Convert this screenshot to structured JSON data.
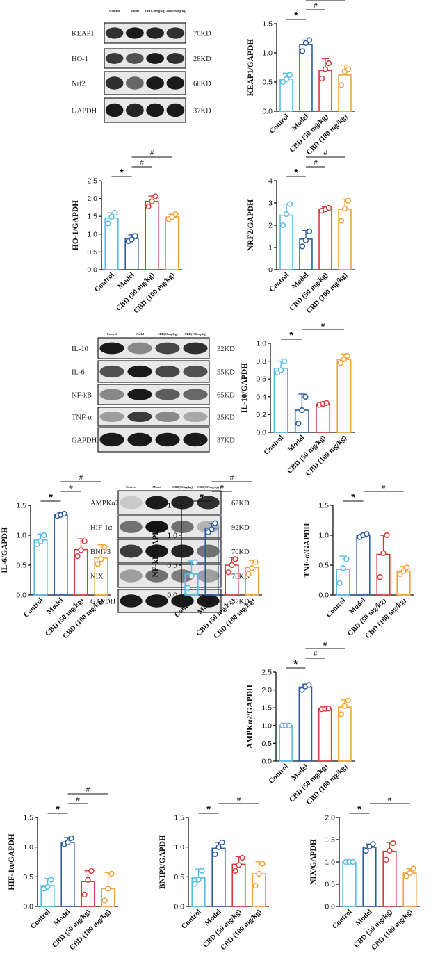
{
  "colors": {
    "Control": "#55bde6",
    "Model": "#2b5c9e",
    "CBD (50 mg/kg)": "#d93a3a",
    "CBD (100 mg/kg)": "#f0a33a"
  },
  "categories": [
    "Control",
    "Model",
    "CBD (50 mg/kg)",
    "CBD (100 mg/kg)"
  ],
  "blots": [
    {
      "lane_labels": [
        "Control",
        "Model",
        "CBD(50mg/kg)",
        "CBD(100mg/kg)"
      ],
      "rows": [
        {
          "protein": "KEAP1",
          "size": "70KD",
          "intensity": [
            0.85,
            0.95,
            0.9,
            0.85
          ]
        },
        {
          "protein": "HO-1",
          "size": "28KD",
          "intensity": [
            0.8,
            0.7,
            0.95,
            0.85
          ]
        },
        {
          "protein": "Nrf2",
          "size": "68KD",
          "intensity": [
            0.85,
            0.6,
            0.95,
            0.95
          ]
        },
        {
          "protein": "GAPDH",
          "size": "37KD",
          "intensity": [
            0.95,
            0.9,
            0.95,
            0.95
          ]
        }
      ]
    },
    {
      "lane_labels": [
        "Control",
        "Model",
        "CBD(50mg/kg)",
        "CBD(100mg/kg)"
      ],
      "rows": [
        {
          "protein": "IL-10",
          "size": "32KD",
          "intensity": [
            0.95,
            0.45,
            0.75,
            0.85
          ]
        },
        {
          "protein": "IL-6",
          "size": "55KD",
          "intensity": [
            0.7,
            0.95,
            0.75,
            0.7
          ]
        },
        {
          "protein": "NF-kB",
          "size": "65KD",
          "intensity": [
            0.45,
            0.95,
            0.65,
            0.6
          ]
        },
        {
          "protein": "TNF-α",
          "size": "25KD",
          "intensity": [
            0.35,
            0.8,
            0.45,
            0.3
          ]
        },
        {
          "protein": "GAPDH",
          "size": "37KD",
          "intensity": [
            0.95,
            0.95,
            0.95,
            0.95
          ]
        }
      ]
    },
    {
      "lane_labels": [
        "Control",
        "Model",
        "CBD(50mg/kg)",
        "CBD(100mg/kg)"
      ],
      "rows": [
        {
          "protein": "AMPKα2",
          "size": "62KD",
          "intensity": [
            0.15,
            0.95,
            0.9,
            0.85
          ]
        },
        {
          "protein": "HIF-1α",
          "size": "92KD",
          "intensity": [
            0.55,
            0.98,
            0.55,
            0.25
          ]
        },
        {
          "protein": "BNIP3",
          "size": "70KD",
          "intensity": [
            0.8,
            0.95,
            0.9,
            0.55
          ]
        },
        {
          "protein": "NIX",
          "size": "70KD",
          "intensity": [
            0.35,
            0.55,
            0.5,
            0.35
          ]
        },
        {
          "protein": "GAPDH",
          "size": "37KD",
          "intensity": [
            0.95,
            0.95,
            0.95,
            0.95
          ]
        }
      ]
    }
  ],
  "chart_data": [
    {
      "type": "bar",
      "ylabel": "KEAP1/GAPDH",
      "ylim": [
        0,
        1.5
      ],
      "yticks": [
        "0.0",
        "0.5",
        "1.0",
        "1.5"
      ],
      "values": [
        0.55,
        1.14,
        0.7,
        0.62
      ],
      "errors": [
        0.1,
        0.08,
        0.2,
        0.17
      ],
      "points": [
        [
          0.5,
          0.55,
          0.62
        ],
        [
          1.03,
          1.17,
          1.22
        ],
        [
          0.56,
          0.72,
          0.82
        ],
        [
          0.45,
          0.68,
          0.72
        ]
      ],
      "sig": [
        {
          "from": 0,
          "to": 1,
          "label": "*"
        },
        {
          "from": 1,
          "to": 2,
          "label": "#"
        },
        {
          "from": 1,
          "to": 3,
          "label": "#"
        }
      ]
    },
    {
      "type": "bar",
      "ylabel": "HO-1/GAPDH",
      "ylim": [
        0,
        2.5
      ],
      "yticks": [
        "0.0",
        "0.5",
        "1.0",
        "1.5",
        "2.0",
        "2.5"
      ],
      "values": [
        1.45,
        0.88,
        1.92,
        1.48
      ],
      "errors": [
        0.15,
        0.1,
        0.15,
        0.08
      ],
      "points": [
        [
          1.3,
          1.48,
          1.6
        ],
        [
          0.8,
          0.85,
          0.95
        ],
        [
          1.78,
          1.92,
          2.06
        ],
        [
          1.42,
          1.48,
          1.56
        ]
      ],
      "sig": [
        {
          "from": 0,
          "to": 1,
          "label": "*"
        },
        {
          "from": 1,
          "to": 2,
          "label": "#"
        },
        {
          "from": 1,
          "to": 3,
          "label": "#"
        }
      ]
    },
    {
      "type": "bar",
      "ylabel": "NRF2/GAPDH",
      "ylim": [
        0,
        4
      ],
      "yticks": [
        "0",
        "1",
        "2",
        "3",
        "4"
      ],
      "values": [
        2.45,
        1.38,
        2.72,
        2.72
      ],
      "errors": [
        0.5,
        0.38,
        0.1,
        0.45
      ],
      "points": [
        [
          2.0,
          2.5,
          2.95
        ],
        [
          1.05,
          1.32,
          1.72
        ],
        [
          2.65,
          2.72,
          2.78
        ],
        [
          2.2,
          2.75,
          3.1
        ]
      ],
      "sig": [
        {
          "from": 0,
          "to": 1,
          "label": "*"
        },
        {
          "from": 1,
          "to": 2,
          "label": "#"
        },
        {
          "from": 1,
          "to": 3,
          "label": "#"
        }
      ]
    },
    {
      "type": "bar",
      "ylabel": "IL-10/GAPDH",
      "ylim": [
        0,
        1.0
      ],
      "yticks": [
        "0.0",
        "0.2",
        "0.4",
        "0.6",
        "0.8",
        "1.0"
      ],
      "values": [
        0.72,
        0.25,
        0.32,
        0.82
      ],
      "errors": [
        0.08,
        0.18,
        0.02,
        0.06
      ],
      "points": [
        [
          0.67,
          0.7,
          0.8
        ],
        [
          0.1,
          0.25,
          0.4
        ],
        [
          0.31,
          0.32,
          0.33
        ],
        [
          0.78,
          0.82,
          0.86
        ]
      ],
      "sig": [
        {
          "from": 0,
          "to": 1,
          "label": "*"
        },
        {
          "from": 1,
          "to": 3,
          "label": "#"
        }
      ]
    },
    {
      "type": "bar",
      "ylabel": "IL-6/GAPDH",
      "ylim": [
        0,
        1.5
      ],
      "yticks": [
        "0.0",
        "0.5",
        "1.0",
        "1.5"
      ],
      "values": [
        0.92,
        1.34,
        0.76,
        0.62
      ],
      "errors": [
        0.1,
        0.04,
        0.18,
        0.22
      ],
      "points": [
        [
          0.85,
          0.9,
          1.0
        ],
        [
          1.32,
          1.34,
          1.36
        ],
        [
          0.65,
          0.75,
          0.9
        ],
        [
          0.52,
          0.6,
          0.8
        ]
      ],
      "sig": [
        {
          "from": 0,
          "to": 1,
          "label": "*"
        },
        {
          "from": 1,
          "to": 2,
          "label": "#"
        },
        {
          "from": 1,
          "to": 3,
          "label": "#"
        }
      ]
    },
    {
      "type": "bar",
      "ylabel": "NF-kB/GAPDH",
      "ylim": [
        0,
        1.5
      ],
      "yticks": [
        "0.0",
        "0.5",
        "1.0",
        "1.5"
      ],
      "values": [
        0.35,
        1.12,
        0.5,
        0.46
      ],
      "errors": [
        0.22,
        0.08,
        0.13,
        0.12
      ],
      "points": [
        [
          0.12,
          0.32,
          0.55
        ],
        [
          1.05,
          1.1,
          1.2
        ],
        [
          0.38,
          0.5,
          0.6
        ],
        [
          0.35,
          0.45,
          0.55
        ]
      ],
      "sig": [
        {
          "from": 0,
          "to": 1,
          "label": "*"
        },
        {
          "from": 1,
          "to": 2,
          "label": "#"
        },
        {
          "from": 1,
          "to": 3,
          "label": "#"
        }
      ]
    },
    {
      "type": "bar",
      "ylabel": "TNF-α/GAPDH",
      "ylim": [
        0,
        1.5
      ],
      "yticks": [
        "0.0",
        "0.5",
        "1.0",
        "1.5"
      ],
      "values": [
        0.43,
        1.0,
        0.68,
        0.4
      ],
      "errors": [
        0.22,
        0.02,
        0.32,
        0.08
      ],
      "points": [
        [
          0.2,
          0.45,
          0.6
        ],
        [
          0.97,
          1.0,
          1.02
        ],
        [
          0.3,
          0.7,
          1.0
        ],
        [
          0.35,
          0.4,
          0.46
        ]
      ],
      "sig": [
        {
          "from": 0,
          "to": 1,
          "label": "*"
        },
        {
          "from": 1,
          "to": 3,
          "label": "#"
        }
      ]
    },
    {
      "type": "bar",
      "ylabel": "AMPKα2/GAPDH",
      "ylim": [
        0,
        2.5
      ],
      "yticks": [
        "0.0",
        "0.5",
        "1.0",
        "1.5",
        "2.0",
        "2.5"
      ],
      "values": [
        1.0,
        2.08,
        1.47,
        1.52
      ],
      "errors": [
        0.01,
        0.08,
        0.02,
        0.2
      ],
      "points": [
        [
          1.0,
          1.0,
          1.0
        ],
        [
          2.0,
          2.1,
          2.14
        ],
        [
          1.46,
          1.47,
          1.48
        ],
        [
          1.32,
          1.55,
          1.7
        ]
      ],
      "sig": [
        {
          "from": 0,
          "to": 1,
          "label": "*"
        },
        {
          "from": 1,
          "to": 2,
          "label": "#"
        },
        {
          "from": 1,
          "to": 3,
          "label": "#"
        }
      ]
    },
    {
      "type": "bar",
      "ylabel": "HIF-1α/GAPDH",
      "ylim": [
        0,
        1.5
      ],
      "yticks": [
        "0.0",
        "0.5",
        "1.0",
        "1.5"
      ],
      "values": [
        0.35,
        1.08,
        0.42,
        0.3
      ],
      "errors": [
        0.12,
        0.08,
        0.18,
        0.27
      ],
      "points": [
        [
          0.3,
          0.33,
          0.45
        ],
        [
          1.05,
          1.08,
          1.15
        ],
        [
          0.2,
          0.45,
          0.6
        ],
        [
          0.1,
          0.3,
          0.55
        ]
      ],
      "sig": [
        {
          "from": 0,
          "to": 1,
          "label": "*"
        },
        {
          "from": 1,
          "to": 2,
          "label": "#"
        },
        {
          "from": 1,
          "to": 3,
          "label": "#"
        }
      ]
    },
    {
      "type": "bar",
      "ylabel": "BNIP3/GAPDH",
      "ylim": [
        0,
        1.5
      ],
      "yticks": [
        "0.0",
        "0.5",
        "1.0",
        "1.5"
      ],
      "values": [
        0.48,
        0.98,
        0.71,
        0.55
      ],
      "errors": [
        0.15,
        0.1,
        0.13,
        0.2
      ],
      "points": [
        [
          0.38,
          0.45,
          0.6
        ],
        [
          0.88,
          1.0,
          1.08
        ],
        [
          0.6,
          0.7,
          0.82
        ],
        [
          0.35,
          0.55,
          0.72
        ]
      ],
      "sig": [
        {
          "from": 0,
          "to": 1,
          "label": "*"
        },
        {
          "from": 1,
          "to": 3,
          "label": "#"
        }
      ]
    },
    {
      "type": "bar",
      "ylabel": "NIX/GAPDH",
      "ylim": [
        0,
        2.0
      ],
      "yticks": [
        "0.0",
        "0.5",
        "1.0",
        "1.5",
        "2.0"
      ],
      "values": [
        1.0,
        1.33,
        1.24,
        0.75
      ],
      "errors": [
        0.01,
        0.07,
        0.2,
        0.1
      ],
      "points": [
        [
          1.0,
          1.0,
          1.0
        ],
        [
          1.25,
          1.35,
          1.4
        ],
        [
          1.05,
          1.25,
          1.42
        ],
        [
          0.68,
          0.75,
          0.85
        ]
      ],
      "sig": [
        {
          "from": 0,
          "to": 1,
          "label": "*"
        },
        {
          "from": 1,
          "to": 3,
          "label": "#"
        }
      ]
    }
  ]
}
